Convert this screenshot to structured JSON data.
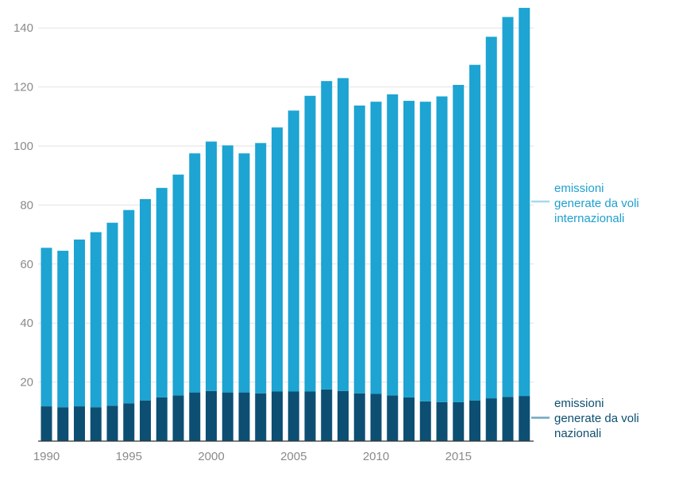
{
  "chart_data": {
    "type": "bar",
    "stacked": true,
    "title": "",
    "xlabel": "",
    "ylabel": "",
    "ylim": [
      0,
      147
    ],
    "x_tick_labels": [
      "1990",
      "1995",
      "2000",
      "2005",
      "2010",
      "2015"
    ],
    "y_tick_labels": [
      "20",
      "40",
      "60",
      "80",
      "100",
      "120",
      "140"
    ],
    "grid": true,
    "legend_placement": "right, aligned with series",
    "categories": [
      "1990",
      "1991",
      "1992",
      "1993",
      "1994",
      "1995",
      "1996",
      "1997",
      "1998",
      "1999",
      "2000",
      "2001",
      "2002",
      "2003",
      "2004",
      "2005",
      "2006",
      "2007",
      "2008",
      "2009",
      "2010",
      "2011",
      "2012",
      "2013",
      "2014",
      "2015",
      "2016",
      "2017",
      "2018",
      "2019"
    ],
    "series": [
      {
        "name": "emissioni generate da voli nazionali",
        "color": "#0d4f72",
        "values": [
          11.8,
          11.5,
          11.8,
          11.5,
          12.0,
          12.8,
          13.8,
          14.8,
          15.5,
          16.5,
          17.0,
          16.5,
          16.5,
          16.2,
          16.8,
          16.8,
          16.8,
          17.5,
          17.0,
          16.2,
          16.0,
          15.5,
          14.8,
          13.5,
          13.2,
          13.2,
          13.8,
          14.5,
          15.0,
          15.3
        ],
        "label_lines": [
          "emissioni",
          "generate da voli",
          "nazionali"
        ]
      },
      {
        "name": "emissioni generate da voli internazionali",
        "color": "#1da4d2",
        "values": [
          53.7,
          53.0,
          56.5,
          59.3,
          62.0,
          65.5,
          68.2,
          71.0,
          74.8,
          81.0,
          84.5,
          83.7,
          81.0,
          84.8,
          89.5,
          95.2,
          100.2,
          104.5,
          106.0,
          97.5,
          99.0,
          102.0,
          100.5,
          101.5,
          103.6,
          107.5,
          113.7,
          122.5,
          128.7,
          131.5
        ],
        "label_lines": [
          "emissioni",
          "generate da voli",
          "internazionali"
        ]
      }
    ]
  }
}
